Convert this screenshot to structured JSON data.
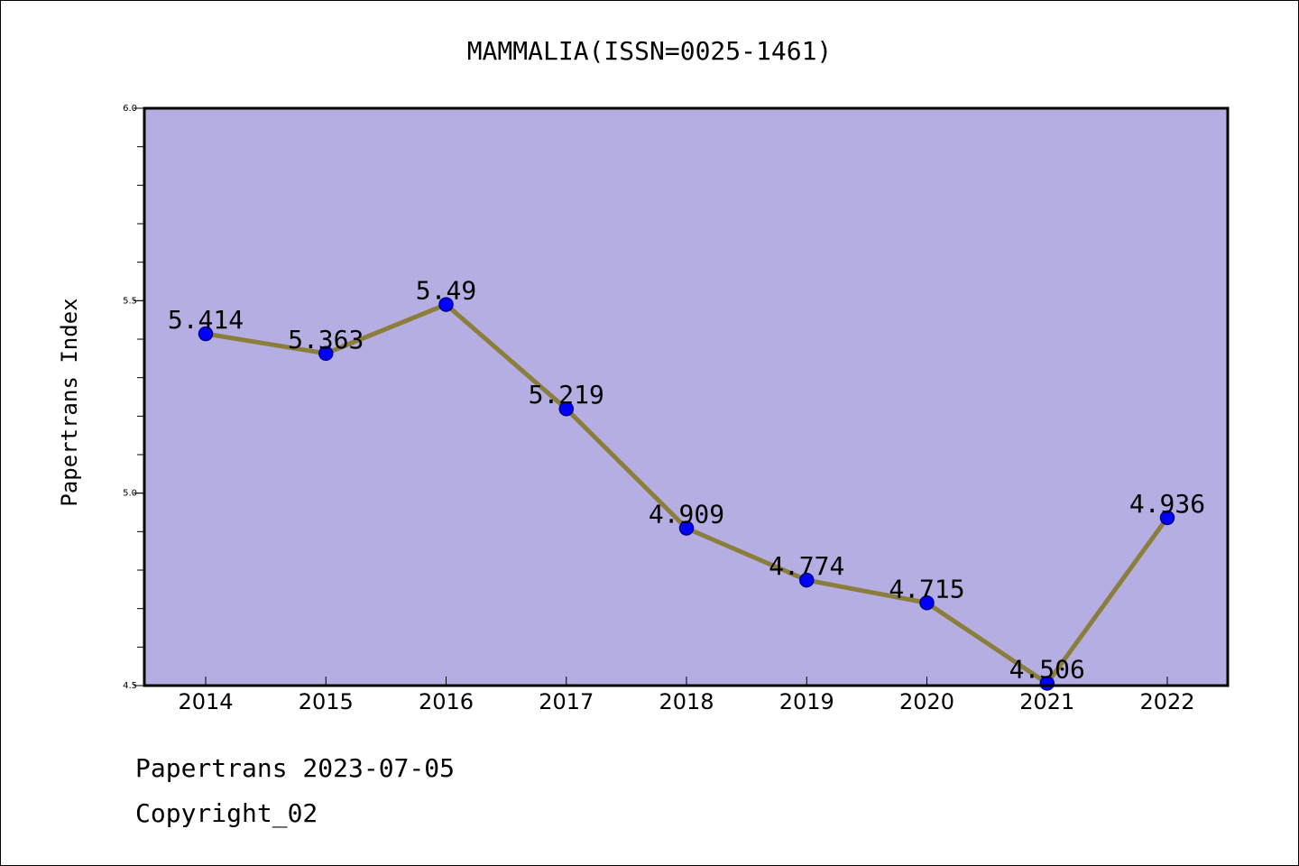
{
  "chart_data": {
    "type": "line",
    "title": "MAMMALIA(ISSN=0025-1461)",
    "xlabel": "",
    "ylabel": "Papertrans Index",
    "categories": [
      "2014",
      "2015",
      "2016",
      "2017",
      "2018",
      "2019",
      "2020",
      "2021",
      "2022"
    ],
    "values": [
      5.414,
      5.363,
      5.49,
      5.219,
      4.909,
      4.774,
      4.715,
      4.506,
      4.936
    ],
    "data_labels": [
      "5.414",
      "5.363",
      "5.49",
      "5.219",
      "4.909",
      "4.774",
      "4.715",
      "4.506",
      "4.936"
    ],
    "ylim": [
      4.5,
      6.0
    ],
    "yticks": [
      4.5,
      5.0,
      5.5,
      6.0
    ],
    "ytick_labels": [
      "4.5",
      "5.0",
      "5.5",
      "6.0"
    ],
    "grid": false,
    "legend": "none",
    "colors": {
      "plot_background": "#b4aee2",
      "line": "#8b7d3a",
      "marker": "#0000ff"
    }
  },
  "footer": {
    "line1": "Papertrans 2023-07-05",
    "line2": "Copyright_02"
  }
}
